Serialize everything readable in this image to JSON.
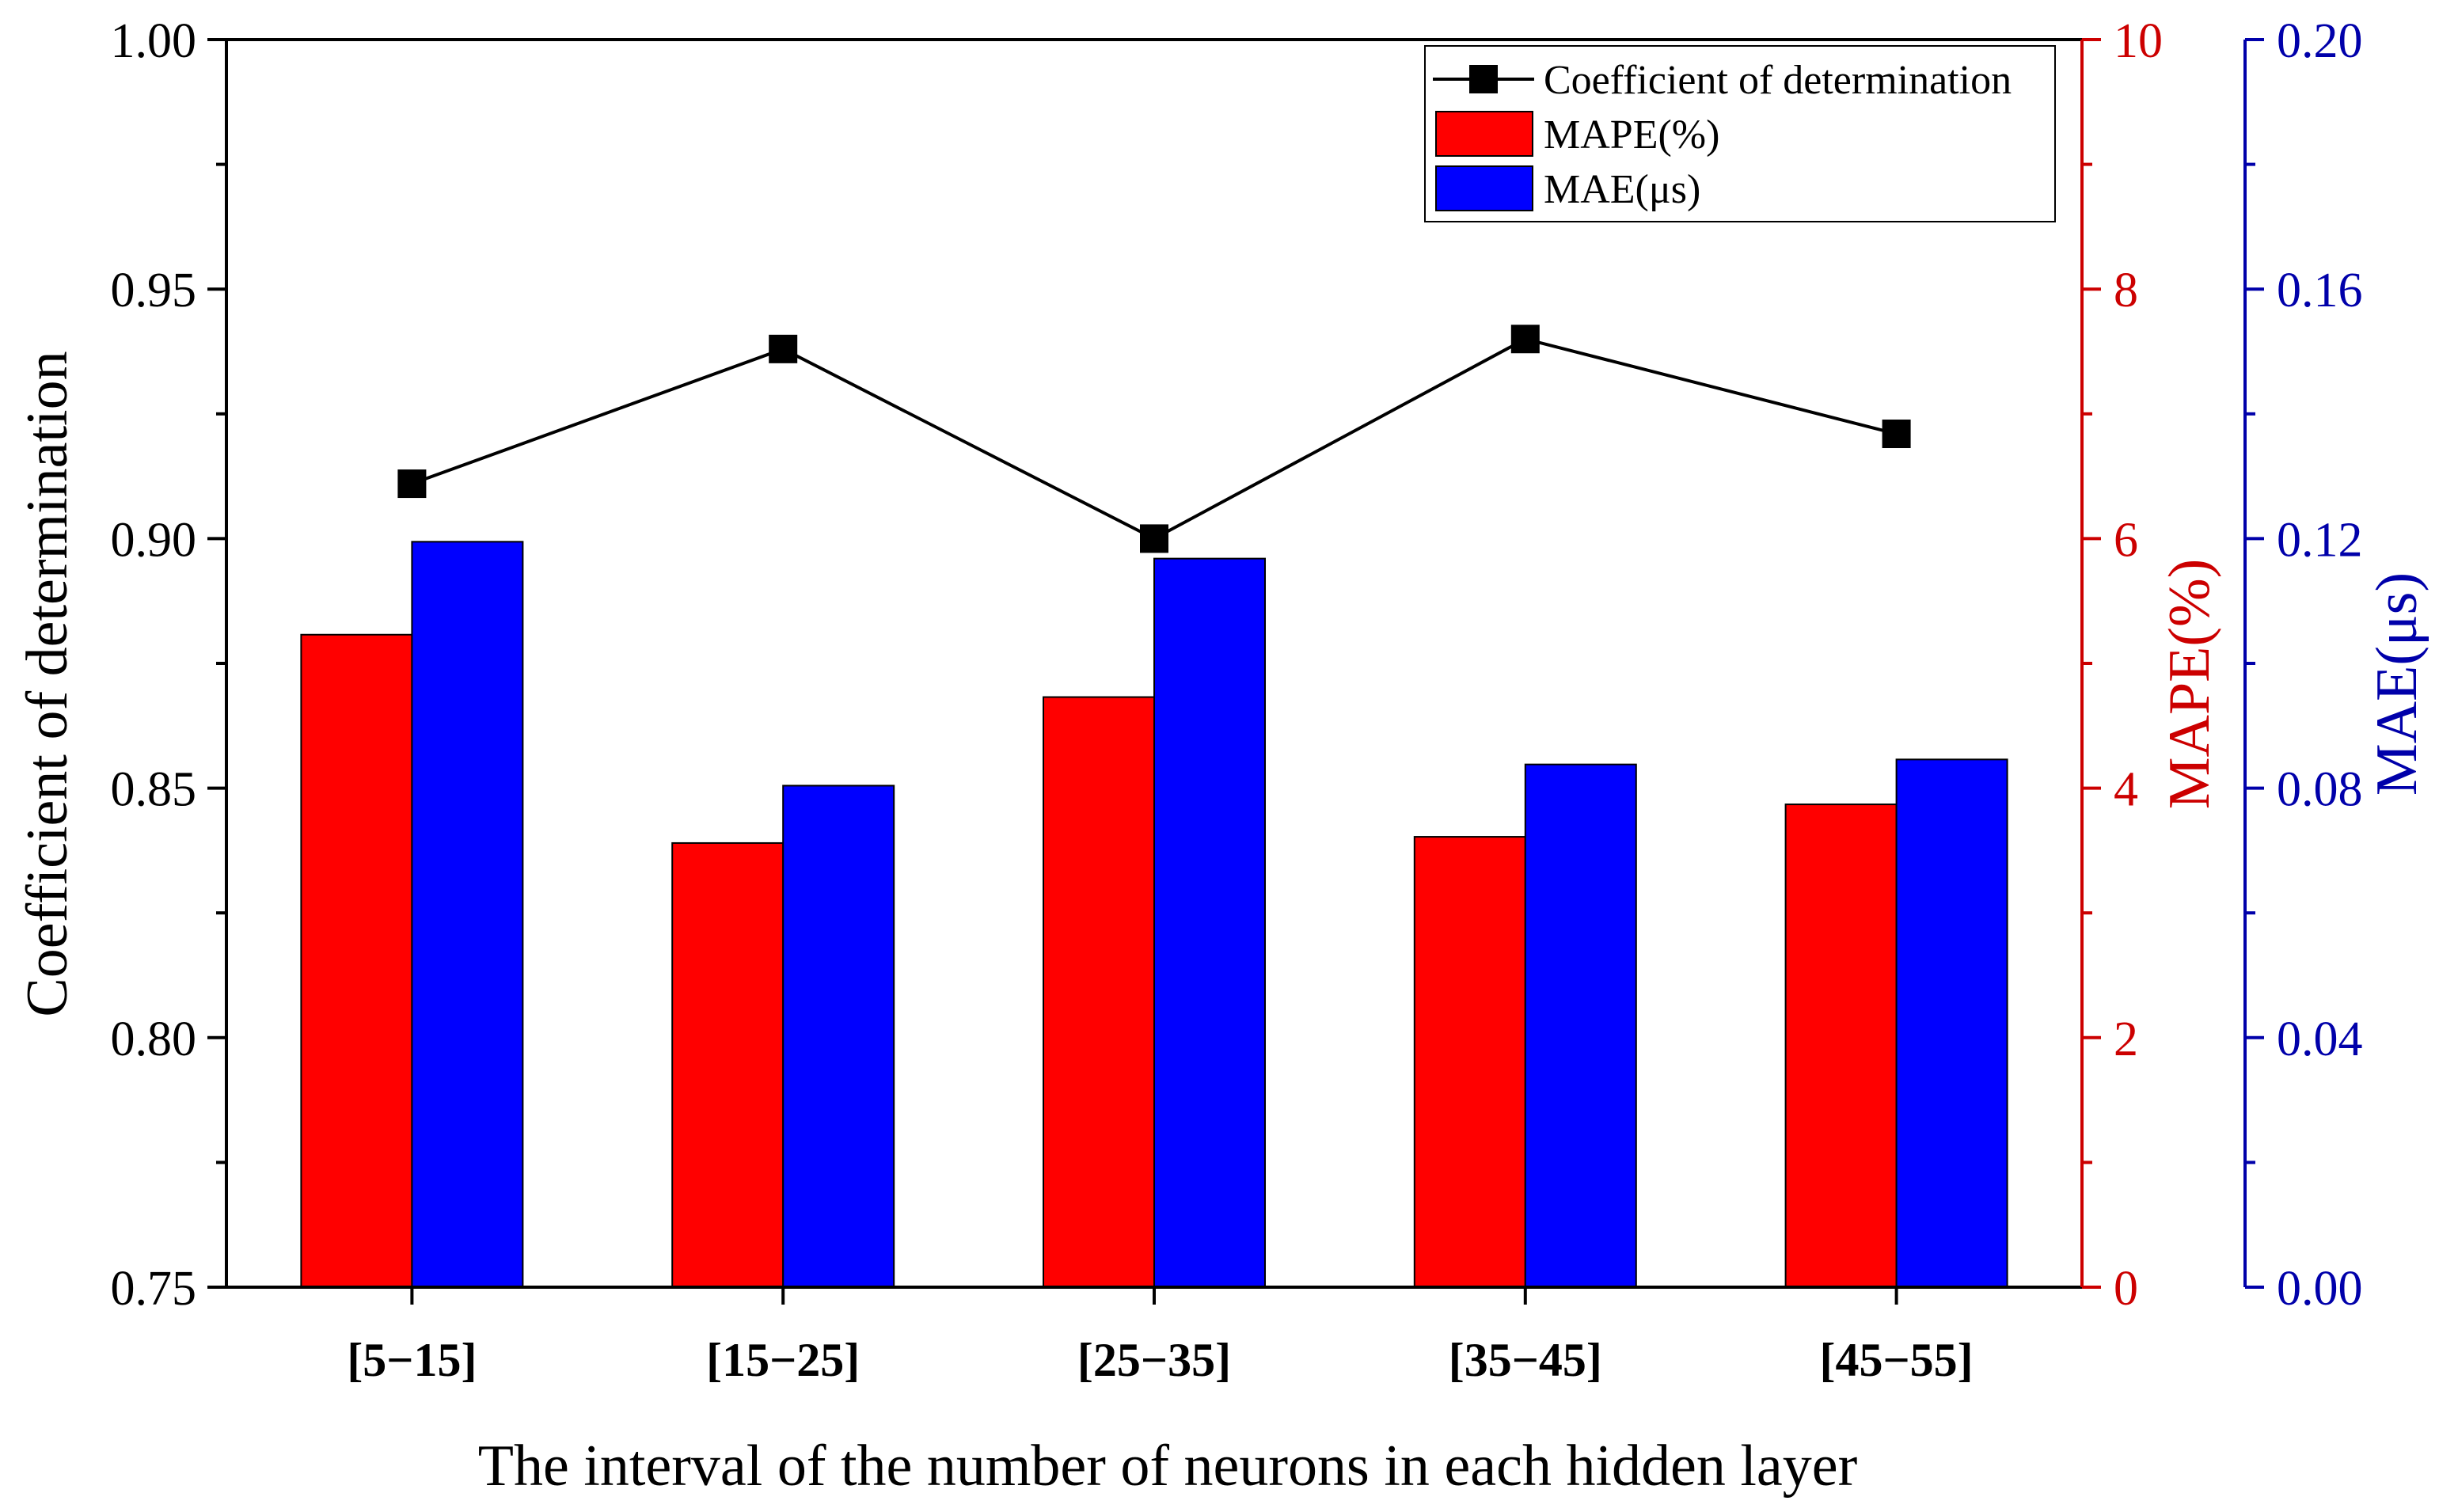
{
  "chart_data": {
    "type": "bar",
    "xlabel": "The interval of the number of neurons in each hidden layer",
    "categories": [
      "[5−15]",
      "[15−25]",
      "[25−35]",
      "[35−45]",
      "[45−55]"
    ],
    "series": [
      {
        "name": "Coefficient of determination",
        "kind": "line-with-square-markers",
        "axis": "left",
        "color": "#000000",
        "values": [
          0.911,
          0.938,
          0.9,
          0.94,
          0.921
        ]
      },
      {
        "name": "MAPE(%)",
        "kind": "bar",
        "axis": "right-1",
        "color": "#ff0000",
        "values": [
          5.23,
          3.56,
          4.73,
          3.61,
          3.87
        ]
      },
      {
        "name": "MAE(μs)",
        "kind": "bar",
        "axis": "right-2",
        "color": "#0000ff",
        "values": [
          0.1195,
          0.0804,
          0.1168,
          0.0838,
          0.0846
        ]
      }
    ],
    "axes": {
      "left": {
        "label": "Coefficient of determination",
        "color": "#000000",
        "min": 0.75,
        "max": 1.0,
        "ticks": [
          "0.75",
          "0.80",
          "0.85",
          "0.90",
          "0.95",
          "1.00"
        ],
        "tick_values": [
          0.75,
          0.8,
          0.85,
          0.9,
          0.95,
          1.0
        ]
      },
      "right1": {
        "label": "MAPE(%)",
        "color": "#cc0000",
        "min": 0,
        "max": 10,
        "ticks": [
          "0",
          "2",
          "4",
          "6",
          "8",
          "10"
        ],
        "tick_values": [
          0,
          2,
          4,
          6,
          8,
          10
        ]
      },
      "right2": {
        "label": "MAE(μs)",
        "color": "#0000aa",
        "min": 0,
        "max": 0.2,
        "ticks": [
          "0.00",
          "0.04",
          "0.08",
          "0.12",
          "0.16",
          "0.20"
        ],
        "tick_values": [
          0,
          0.04,
          0.08,
          0.12,
          0.16,
          0.2
        ]
      }
    },
    "legend": {
      "placement": "top-right",
      "entries": [
        "Coefficient of determination",
        "MAPE(%)",
        "MAE(μs)"
      ]
    },
    "grid": false
  }
}
